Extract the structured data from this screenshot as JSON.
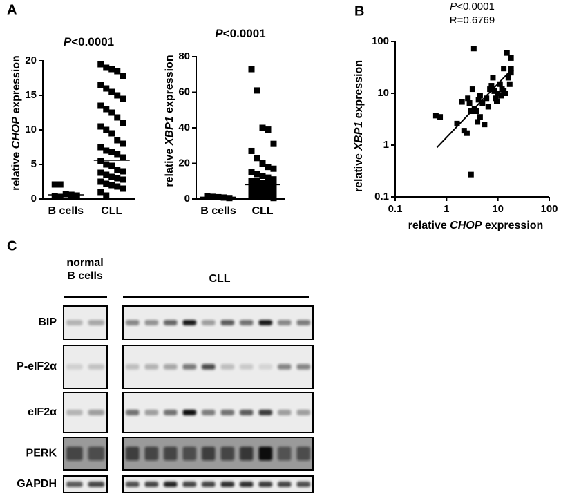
{
  "panels": {
    "a": "A",
    "b": "B",
    "c": "C"
  },
  "chart_data": [
    {
      "type": "strip",
      "title_parts": [
        "P",
        "<0.0001"
      ],
      "title_italic": 0,
      "ylabel_parts": [
        "relative ",
        "CHOP",
        " expression"
      ],
      "ylabel_italic": 1,
      "categories": [
        "B cells",
        "CLL"
      ],
      "color": "#000000",
      "groups": [
        {
          "values": [
            2.1,
            2.1,
            0.7,
            0.6,
            0.5,
            0.4,
            0.3
          ],
          "median": 0.6
        },
        {
          "values": [
            19.5,
            19,
            18.8,
            18.5,
            17.8,
            16.5,
            16,
            15.5,
            15,
            14.5,
            13.5,
            13,
            12.5,
            11.8,
            11,
            10.5,
            10,
            9.5,
            8.5,
            8,
            7.5,
            7,
            6.8,
            6.5,
            6,
            5.5,
            5,
            4.8,
            4.2,
            4,
            3.8,
            3.5,
            3.2,
            3,
            2.8,
            2.5,
            2.2,
            2,
            1.8,
            1.5,
            1,
            0.5
          ],
          "median": 5.6
        }
      ],
      "ylim": [
        0,
        20
      ],
      "yticks": [
        0,
        5,
        10,
        15,
        20
      ]
    },
    {
      "type": "strip",
      "title_parts": [
        "P",
        "<0.0001"
      ],
      "title_italic": 0,
      "ylabel_parts": [
        "relative ",
        "XBP1",
        " expression"
      ],
      "ylabel_italic": 1,
      "categories": [
        "B cells",
        "CLL"
      ],
      "color": "#000000",
      "groups": [
        {
          "values": [
            1.5,
            1.2,
            1,
            0.8,
            0.5,
            1.3
          ],
          "median": 1
        },
        {
          "values": [
            73,
            61,
            40,
            39,
            31,
            27,
            23,
            20,
            18,
            17,
            15,
            14,
            13,
            12,
            11,
            10,
            10,
            9,
            9,
            8,
            8,
            7,
            7,
            6,
            6,
            5,
            5,
            5,
            4,
            4,
            3,
            3,
            3,
            2,
            2,
            2,
            1,
            1,
            1,
            0.5
          ],
          "median": 8
        }
      ],
      "ylim": [
        0,
        80
      ],
      "yticks": [
        0,
        20,
        40,
        60,
        80
      ]
    },
    {
      "type": "scatter",
      "title_parts": [
        "P",
        "<0.0001"
      ],
      "title_italic": 0,
      "subtitle": "R=0.6769",
      "xlabel_parts": [
        "relative ",
        "CHOP",
        " expression"
      ],
      "xlabel_italic": 1,
      "ylabel_parts": [
        "relative ",
        "XBP1",
        " expression"
      ],
      "ylabel_italic": 1,
      "color": "#000000",
      "log_x": true,
      "log_y": true,
      "x": [
        0.62,
        0.75,
        1.6,
        2,
        2.2,
        2.5,
        2.6,
        2.8,
        3,
        3,
        3.2,
        3.4,
        3.5,
        3.8,
        4,
        4.2,
        4.5,
        4.5,
        5,
        5.5,
        6,
        6.5,
        7,
        7.5,
        8,
        8.5,
        9,
        9.5,
        10,
        11,
        11.5,
        12,
        13,
        13,
        14,
        15,
        16,
        17,
        18,
        18,
        18
      ],
      "y": [
        3.7,
        3.5,
        2.6,
        6.8,
        1.9,
        1.7,
        8,
        6.5,
        4.5,
        0.27,
        12,
        73,
        5,
        4.5,
        2.8,
        7.5,
        9,
        3.5,
        6.5,
        2.5,
        8,
        5.5,
        12,
        14,
        20,
        11,
        8,
        7,
        10,
        15,
        9,
        12,
        30,
        11,
        10,
        60,
        20,
        15,
        48,
        25,
        30
      ],
      "fit_line": {
        "x": [
          0.65,
          18
        ],
        "y": [
          0.9,
          28
        ]
      },
      "xlim": [
        0.1,
        100
      ],
      "ylim": [
        0.1,
        100
      ],
      "xticks": [
        0.1,
        1,
        10,
        100
      ],
      "yticks": [
        0.1,
        1,
        10,
        100
      ]
    }
  ],
  "blot": {
    "groups": [
      {
        "label_lines": [
          "normal",
          "B cells"
        ]
      },
      {
        "label_lines": [
          "CLL"
        ]
      }
    ],
    "rows": [
      "BIP",
      "P-eIF2α",
      "eIF2α",
      "PERK",
      "GAPDH"
    ]
  }
}
